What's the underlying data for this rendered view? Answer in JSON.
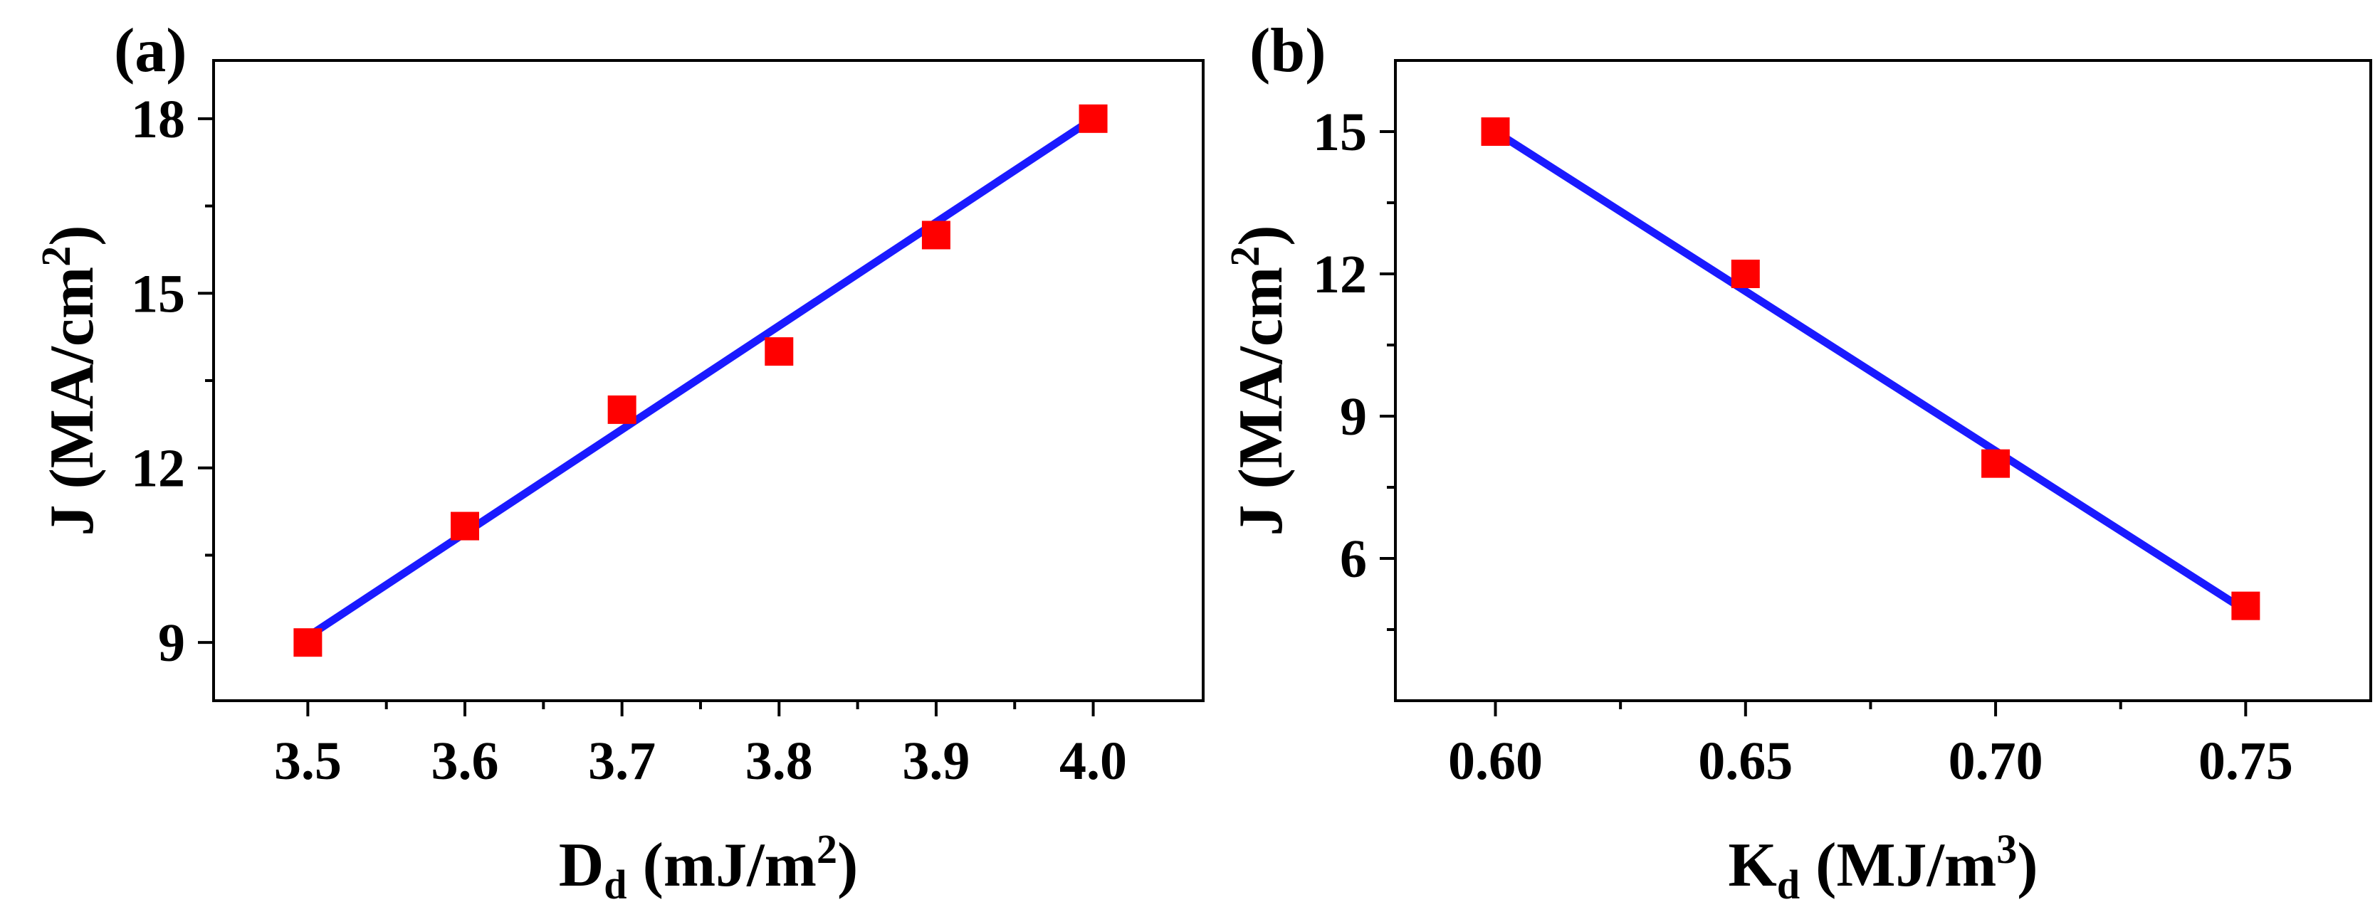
{
  "chart_data": [
    {
      "type": "scatter",
      "panel_label": "(a)",
      "x": [
        3.5,
        3.6,
        3.7,
        3.8,
        3.9,
        4.0
      ],
      "y": [
        9,
        11,
        13,
        14,
        16,
        18
      ],
      "fit_line": {
        "x": [
          3.5,
          4.0
        ],
        "y": [
          9.1,
          18.0
        ]
      },
      "xlim": [
        3.44,
        4.07
      ],
      "ylim": [
        8.0,
        19.0
      ],
      "xticks": [
        3.5,
        3.6,
        3.7,
        3.8,
        3.9,
        4.0
      ],
      "xtick_labels": [
        "3.5",
        "3.6",
        "3.7",
        "3.8",
        "3.9",
        "4.0"
      ],
      "yticks": [
        9,
        12,
        15,
        18
      ],
      "ytick_labels": [
        "9",
        "12",
        "15",
        "18"
      ],
      "xlabel": {
        "main": "D",
        "sub": "d",
        "unit": " (mJ/m",
        "sup": "2",
        "close": ")"
      },
      "ylabel": {
        "main": "J (MA/cm",
        "sup": "2",
        "close": ")"
      },
      "marker_color": "#ff0000",
      "line_color": "#1a1aff"
    },
    {
      "type": "scatter",
      "panel_label": "(b)",
      "x": [
        0.6,
        0.65,
        0.7,
        0.75
      ],
      "y": [
        15,
        12,
        8,
        5
      ],
      "fit_line": {
        "x": [
          0.6,
          0.75
        ],
        "y": [
          15.0,
          4.9
        ]
      },
      "xlim": [
        0.58,
        0.775
      ],
      "ylim": [
        3.0,
        16.5
      ],
      "xticks": [
        0.6,
        0.65,
        0.7,
        0.75
      ],
      "xtick_labels": [
        "0.60",
        "0.65",
        "0.70",
        "0.75"
      ],
      "yticks": [
        6,
        9,
        12,
        15
      ],
      "ytick_labels": [
        "6",
        "9",
        "12",
        "15"
      ],
      "xlabel": {
        "main": "K",
        "sub": "d",
        "unit": " (MJ/m",
        "sup": "3",
        "close": ")"
      },
      "ylabel": {
        "main": "J (MA/cm",
        "sup": "2",
        "close": ")"
      },
      "marker_color": "#ff0000",
      "line_color": "#1a1aff"
    }
  ]
}
